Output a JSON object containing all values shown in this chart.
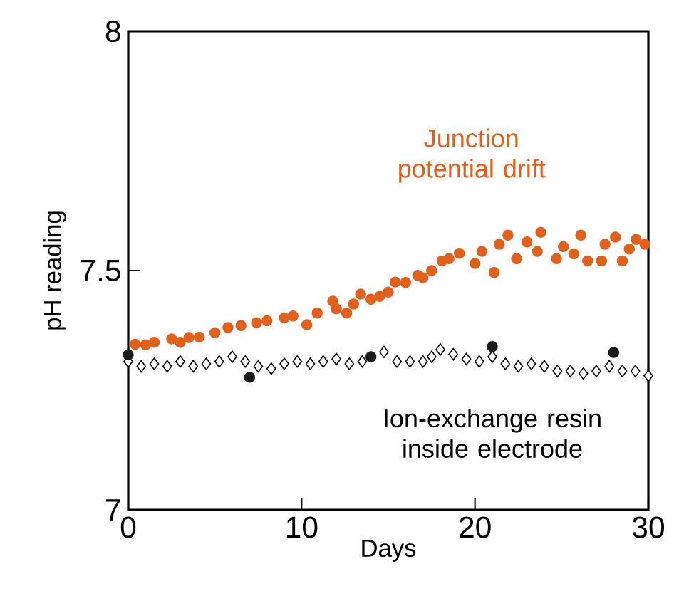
{
  "chart_data": {
    "type": "scatter",
    "xlabel": "Days",
    "ylabel": "pH reading",
    "xlim": [
      0,
      30
    ],
    "ylim": [
      7,
      8
    ],
    "xticks": [
      0,
      10,
      20,
      30
    ],
    "yticks": [
      7,
      7.5,
      8
    ],
    "grid": false,
    "series": [
      {
        "name": "Junction potential drift",
        "color": "#e0601e",
        "marker": "circle",
        "x": [
          0.4,
          1,
          1.5,
          2.5,
          3,
          3.5,
          4.1,
          5,
          5.75,
          6.5,
          7.4,
          8,
          9,
          9.5,
          10.3,
          10.9,
          11.8,
          12,
          12.6,
          13,
          13.4,
          14,
          14.5,
          15,
          15.4,
          16,
          16.7,
          17,
          17.5,
          18.1,
          18.5,
          19.1,
          20,
          20.4,
          21.1,
          21.4,
          21.9,
          22.4,
          23,
          23.6,
          23.8,
          24.7,
          25.1,
          25.7,
          26.1,
          26.5,
          27.3,
          27.5,
          28.1,
          28.5,
          28.9,
          29.3,
          29.8
        ],
        "values": [
          7.346,
          7.345,
          7.35,
          7.357,
          7.35,
          7.36,
          7.361,
          7.37,
          7.381,
          7.385,
          7.391,
          7.395,
          7.401,
          7.405,
          7.387,
          7.411,
          7.436,
          7.42,
          7.411,
          7.43,
          7.451,
          7.44,
          7.446,
          7.455,
          7.476,
          7.475,
          7.49,
          7.485,
          7.5,
          7.52,
          7.525,
          7.536,
          7.515,
          7.54,
          7.496,
          7.555,
          7.574,
          7.525,
          7.56,
          7.54,
          7.58,
          7.525,
          7.55,
          7.535,
          7.574,
          7.52,
          7.52,
          7.555,
          7.57,
          7.52,
          7.545,
          7.565,
          7.555
        ]
      },
      {
        "name": "Ion-exchange resin inside electrode",
        "color": "#000000",
        "marker": "diamond",
        "x": [
          0,
          0.75,
          1.5,
          2.25,
          3,
          3.75,
          4.5,
          5.25,
          6,
          6.75,
          7.5,
          8.25,
          9,
          9.75,
          10.5,
          11.25,
          12,
          12.75,
          13.5,
          14.75,
          15.5,
          16.25,
          17,
          17.5,
          18,
          18.75,
          19.5,
          20.25,
          21,
          21.75,
          22.5,
          23.25,
          24,
          24.75,
          25.5,
          26.25,
          27,
          27.75,
          28.5,
          29.25,
          30
        ],
        "values": [
          7.31,
          7.3,
          7.305,
          7.3,
          7.31,
          7.3,
          7.305,
          7.31,
          7.32,
          7.31,
          7.3,
          7.295,
          7.305,
          7.31,
          7.305,
          7.31,
          7.315,
          7.305,
          7.31,
          7.33,
          7.31,
          7.31,
          7.31,
          7.32,
          7.335,
          7.325,
          7.315,
          7.31,
          7.32,
          7.305,
          7.3,
          7.305,
          7.3,
          7.29,
          7.29,
          7.285,
          7.29,
          7.3,
          7.29,
          7.29,
          7.28
        ]
      },
      {
        "color": "#1a1a1a",
        "marker": "circle",
        "x": [
          0,
          7,
          14,
          21,
          28
        ],
        "values": [
          7.324,
          7.277,
          7.32,
          7.341,
          7.329
        ]
      }
    ]
  }
}
